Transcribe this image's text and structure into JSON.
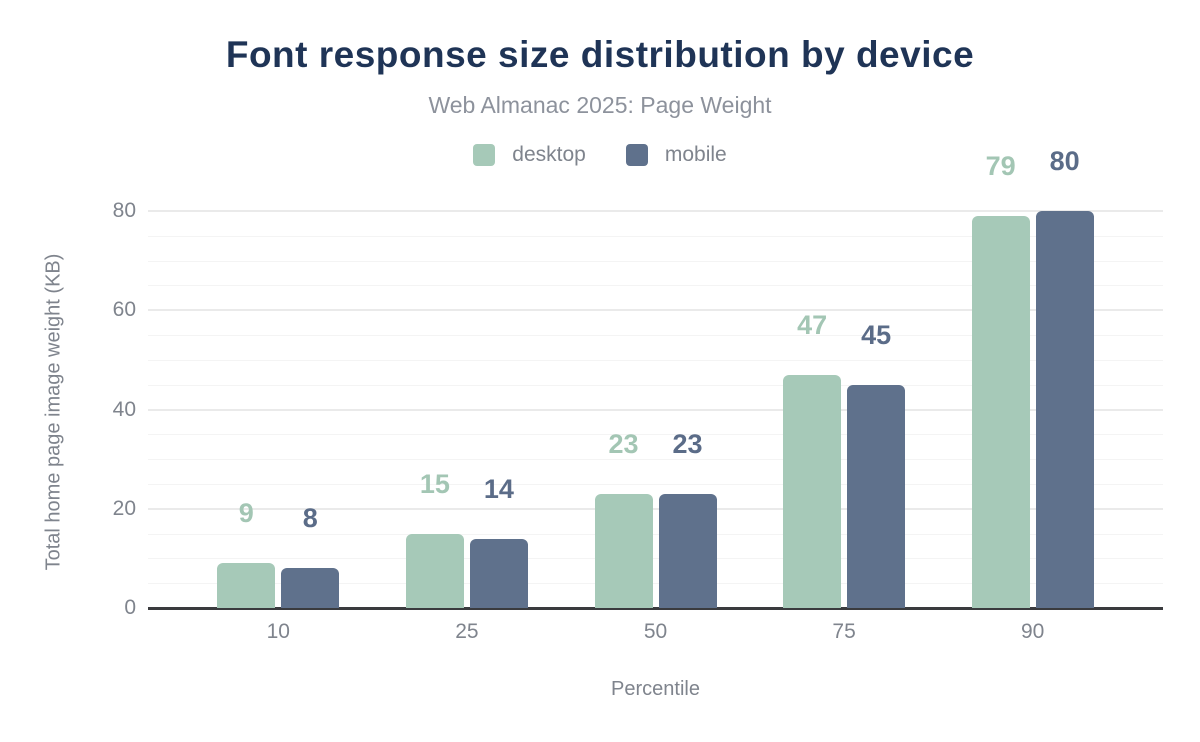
{
  "title": "Font response size distribution by device",
  "subtitle": "Web Almanac 2025: Page Weight",
  "colors": {
    "title_text": "#1f3456",
    "subtitle_text": "#8d929c",
    "axis_text": "#7f848d",
    "axis_line": "#3a3b3e",
    "grid_major": "#eaeaea",
    "grid_minor": "#f4f4f4",
    "desktop": "#a6c9b8",
    "mobile": "#5f718c"
  },
  "chart_data": {
    "type": "bar",
    "categories": [
      "10",
      "25",
      "50",
      "75",
      "90"
    ],
    "series": [
      {
        "name": "desktop",
        "values": [
          9,
          15,
          23,
          47,
          79
        ],
        "color": "#a6c9b8",
        "label_color": "#a3c6b4"
      },
      {
        "name": "mobile",
        "values": [
          8,
          14,
          23,
          45,
          80
        ],
        "color": "#5f718c",
        "label_color": "#5b6c88"
      }
    ],
    "title": "Font response size distribution by device",
    "subtitle": "Web Almanac 2025: Page Weight",
    "xlabel": "Percentile",
    "ylabel": "Total home page image weight (KB)",
    "ylim": [
      0,
      80
    ],
    "ytick_interval": 20,
    "minor_tick_interval": 5,
    "yticks": [
      0,
      20,
      40,
      60,
      80
    ],
    "grid": "horizontal",
    "legend_position": "top",
    "value_labels": true
  }
}
